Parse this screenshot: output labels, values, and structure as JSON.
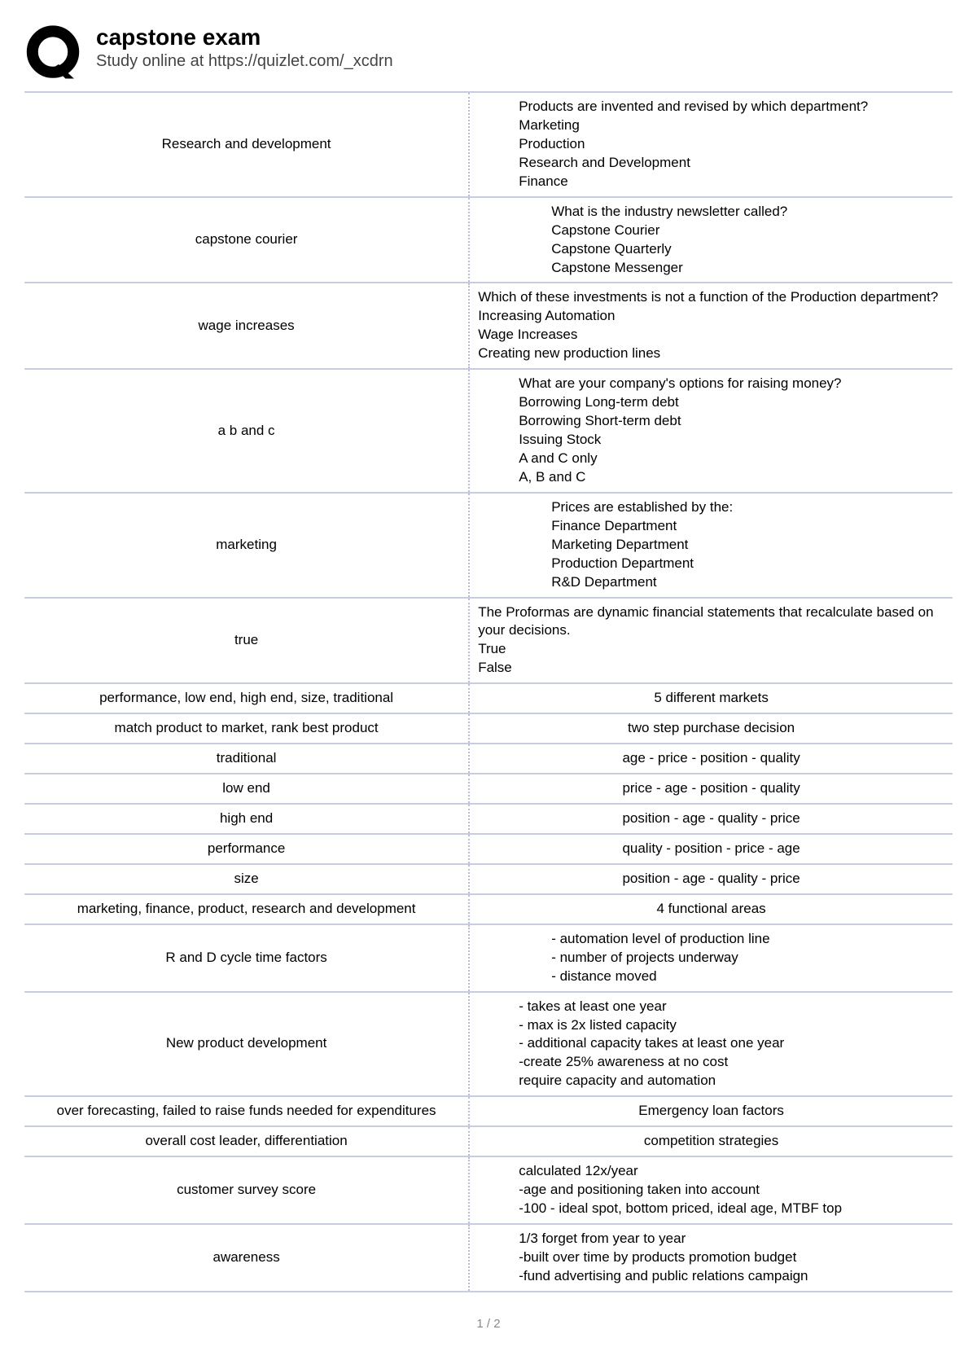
{
  "header": {
    "title": "capstone exam",
    "subtitle": "Study online at https://quizlet.com/_xcdrn"
  },
  "rows": [
    {
      "term": "Research and development",
      "definition": "Products are invented and revised by which department?\nMarketing\nProduction\nResearch and Development\nFinance",
      "rightClass": "pad-left"
    },
    {
      "term": "capstone courier",
      "definition": "What is the industry newsletter called?\nCapstone Courier\nCapstone Quarterly\nCapstone Messenger",
      "rightClass": "pad-left2"
    },
    {
      "term": "wage increases",
      "definition": "Which of these investments is not a function of the Production department?\nIncreasing Automation\nWage Increases\nCreating new production lines",
      "rightClass": ""
    },
    {
      "term": "a b and c",
      "definition": "What are your company's options for raising money?\nBorrowing Long-term debt\nBorrowing Short-term debt\nIssuing Stock\nA and C only\nA, B and C",
      "rightClass": "pad-left"
    },
    {
      "term": "marketing",
      "definition": "Prices are established by the:\nFinance Department\nMarketing Department\nProduction Department\nR&D Department",
      "rightClass": "pad-left2"
    },
    {
      "term": "true",
      "definition": "The Proformas are dynamic financial statements that recalculate based on your decisions.\nTrue\nFalse",
      "rightClass": ""
    },
    {
      "term": "performance, low end, high end, size, traditional",
      "definition": "5 different markets",
      "rightClass": "centered"
    },
    {
      "term": "match product to market, rank best product",
      "definition": "two step purchase decision",
      "rightClass": "centered"
    },
    {
      "term": "traditional",
      "definition": "age - price - position - quality",
      "rightClass": "centered"
    },
    {
      "term": "low end",
      "definition": "price - age - position - quality",
      "rightClass": "centered"
    },
    {
      "term": "high end",
      "definition": "position - age - quality - price",
      "rightClass": "centered"
    },
    {
      "term": "performance",
      "definition": "quality - position - price - age",
      "rightClass": "centered"
    },
    {
      "term": "size",
      "definition": "position - age - quality - price",
      "rightClass": "centered"
    },
    {
      "term": "marketing, finance, product, research and development",
      "definition": "4 functional areas",
      "rightClass": "centered"
    },
    {
      "term": "R and D cycle time factors",
      "definition": "- automation level of production line\n- number of projects underway\n- distance moved",
      "rightClass": "pad-left2"
    },
    {
      "term": "New product development",
      "definition": "- takes at least one year\n- max is 2x listed capacity\n- additional capacity takes at least one year\n-create 25% awareness at no cost\nrequire capacity and automation",
      "rightClass": "pad-left"
    },
    {
      "term": "over forecasting, failed to raise funds needed for expenditures",
      "definition": "Emergency loan factors",
      "rightClass": "centered"
    },
    {
      "term": "overall cost leader, differentiation",
      "definition": "competition strategies",
      "rightClass": "centered"
    },
    {
      "term": "customer survey score",
      "definition": "calculated 12x/year\n-age and positioning taken into account\n-100 - ideal spot, bottom priced, ideal age, MTBF top",
      "rightClass": "pad-left"
    },
    {
      "term": "awareness",
      "definition": "1/3 forget from year to year\n-built over time by products promotion budget\n-fund advertising and public relations campaign",
      "rightClass": "pad-left"
    }
  ],
  "footer": {
    "page": "1 / 2"
  }
}
